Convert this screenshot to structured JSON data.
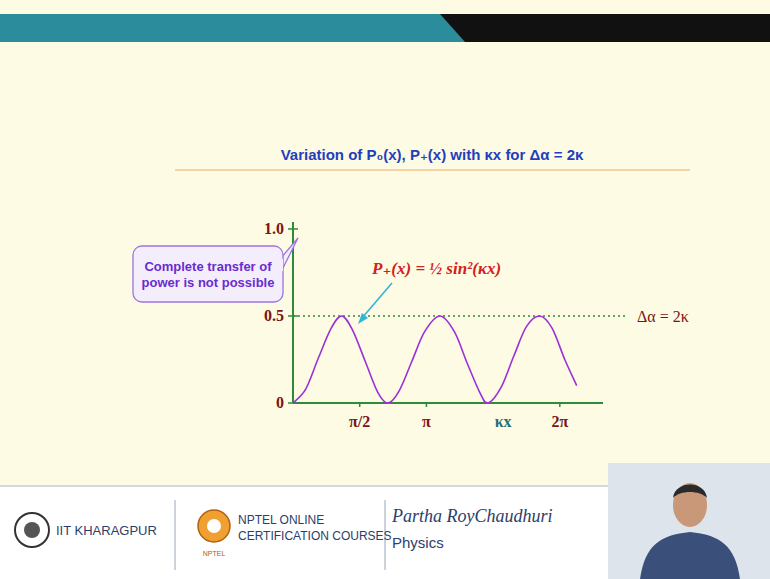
{
  "chart_data": {
    "type": "line",
    "title": "Variation of P₀(x), P₊(x) with κx for Δα = 2κ",
    "x_label": "κx",
    "x": [
      0,
      0.3,
      0.6,
      0.9,
      1.15,
      1.4,
      1.7,
      2.0,
      2.24,
      2.5,
      2.8,
      3.1,
      3.46,
      3.8,
      4.1,
      4.4,
      4.59,
      4.9,
      5.2,
      5.5,
      5.81,
      6.1,
      6.4,
      6.68
    ],
    "series": [
      {
        "name": "P₊(x) = ½ sin²(κx)",
        "color": "#9b30d9",
        "line_style": "solid",
        "values": [
          0,
          0.08,
          0.26,
          0.43,
          0.5,
          0.42,
          0.24,
          0.06,
          0,
          0.07,
          0.24,
          0.41,
          0.5,
          0.41,
          0.23,
          0.06,
          0,
          0.09,
          0.27,
          0.44,
          0.5,
          0.43,
          0.25,
          0.1
        ]
      }
    ],
    "xlim": [
      0,
      7.3
    ],
    "ylim": [
      0,
      1.04
    ],
    "xticks": [
      {
        "value": 1.5708,
        "label": "π/2"
      },
      {
        "value": 3.1416,
        "label": "π"
      },
      {
        "value": 6.2832,
        "label": "2π"
      }
    ],
    "yticks": [
      0,
      0.5,
      {
        "value": 1,
        "label": "1.0"
      }
    ],
    "reference_line": {
      "value": 0.5,
      "label": "Δα = 2κ"
    },
    "annotations": [
      "Complete transfer of power is not possible"
    ],
    "grid": false
  },
  "footer": {
    "institute": "IIT KHARAGPUR",
    "course_lines": [
      "NPTEL ONLINE",
      "CERTIFICATION COURSES"
    ],
    "logo_text": "NPTEL",
    "author": "Partha RoyChaudhuri",
    "subject": "Physics"
  }
}
